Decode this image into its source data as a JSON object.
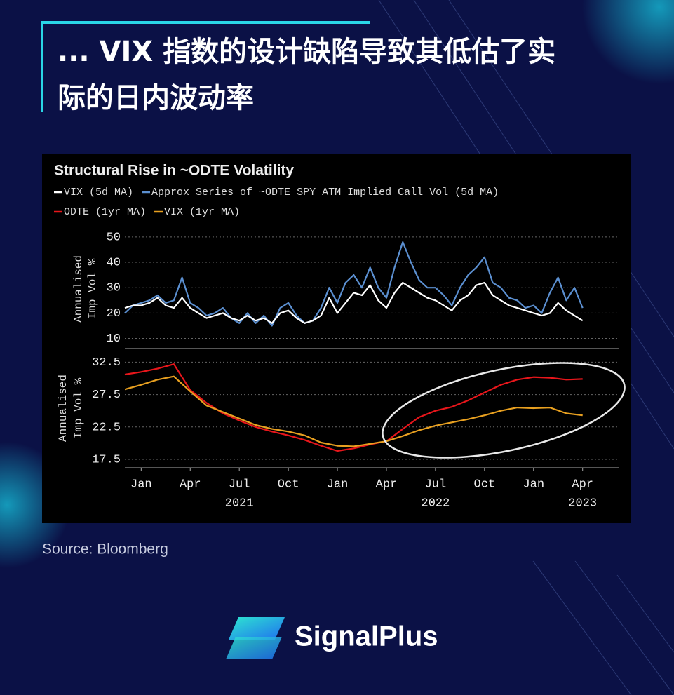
{
  "header": {
    "title_lines": [
      "... VIX 指数的设计缺陷导致其低估了实",
      "际的日内波动率"
    ]
  },
  "chart_data": [
    {
      "type": "line",
      "title": "Structural Rise in ~ODTE Volatility",
      "ylabel": [
        "Annualised",
        "Imp Vol %"
      ],
      "x": [
        -1,
        -0.5,
        0,
        0.5,
        1,
        1.5,
        2,
        2.5,
        3,
        3.5,
        4,
        4.5,
        5,
        5.5,
        6,
        6.5,
        7,
        7.5,
        8,
        8.5,
        9,
        9.5,
        10,
        10.5,
        11,
        11.5,
        12,
        12.5,
        13,
        13.5,
        14,
        14.5,
        15,
        15.5,
        16,
        16.5,
        17,
        17.5,
        18,
        18.5,
        19,
        19.5,
        20,
        20.5,
        21,
        21.5,
        22,
        22.5,
        23,
        23.5,
        24,
        24.5,
        25,
        25.5,
        26,
        26.5,
        27
      ],
      "xlim": [
        -1,
        29.2
      ],
      "ylim": [
        6,
        53
      ],
      "yticks": [
        10,
        20,
        30,
        40,
        50
      ],
      "grid": true,
      "series": [
        {
          "name": "Approx Series of ~ODTE SPY ATM Implied Call Vol (5d MA)",
          "color": "#5b8fd0",
          "values": [
            20,
            23,
            24,
            25,
            27,
            24,
            25,
            34,
            24,
            22,
            19,
            20,
            22,
            18,
            16,
            20,
            16,
            19,
            15,
            22,
            24,
            19,
            16,
            17,
            22,
            30,
            24,
            32,
            35,
            30,
            38,
            30,
            26,
            38,
            48,
            40,
            33,
            30,
            30,
            27,
            23,
            30,
            35,
            38,
            42,
            32,
            30,
            26,
            25,
            22,
            23,
            20,
            28,
            34,
            25,
            30,
            22
          ]
        },
        {
          "name": "VIX (5d MA)",
          "color": "#ffffff",
          "values": [
            22,
            23,
            23,
            24,
            26,
            23,
            22,
            26,
            22,
            20,
            18,
            19,
            20,
            18,
            17,
            19,
            17,
            18,
            16,
            20,
            21,
            18,
            16,
            17,
            19,
            26,
            20,
            24,
            28,
            27,
            31,
            25,
            22,
            28,
            32,
            30,
            28,
            26,
            25,
            23,
            21,
            25,
            27,
            31,
            32,
            27,
            25,
            23,
            22,
            21,
            20,
            19,
            20,
            24,
            21,
            19,
            17
          ]
        }
      ]
    },
    {
      "type": "line",
      "ylabel": [
        "Annualised",
        "Imp Vol %"
      ],
      "x": [
        -1,
        0,
        1,
        2,
        3,
        4,
        5,
        6,
        7,
        8,
        9,
        10,
        11,
        12,
        13,
        14,
        15,
        16,
        17,
        18,
        19,
        20,
        21,
        22,
        23,
        24,
        25,
        26,
        27
      ],
      "xlim": [
        -1,
        29.2
      ],
      "ylim": [
        16.2,
        34.6
      ],
      "yticks": [
        17.5,
        22.5,
        27.5,
        32.5
      ],
      "grid": true,
      "xticks": [
        {
          "value": 0,
          "label": "Jan"
        },
        {
          "value": 3,
          "label": "Apr"
        },
        {
          "value": 6,
          "label": "Jul"
        },
        {
          "value": 9,
          "label": "Oct"
        },
        {
          "value": 12,
          "label": "Jan"
        },
        {
          "value": 15,
          "label": "Apr"
        },
        {
          "value": 18,
          "label": "Jul"
        },
        {
          "value": 21,
          "label": "Oct"
        },
        {
          "value": 24,
          "label": "Jan"
        },
        {
          "value": 27,
          "label": "Apr"
        }
      ],
      "year_labels": [
        {
          "value": 6,
          "label": "2021"
        },
        {
          "value": 18,
          "label": "2022"
        },
        {
          "value": 27,
          "label": "2023"
        }
      ],
      "series": [
        {
          "name": "ODTE (1yr MA)",
          "color": "#e8161b",
          "values": [
            30.6,
            31,
            31.5,
            32.2,
            28.2,
            26.2,
            24.6,
            23.5,
            22.5,
            21.8,
            21.2,
            20.5,
            19.6,
            18.8,
            19.2,
            19.8,
            20.3,
            22.2,
            24,
            25,
            25.6,
            26.6,
            27.8,
            29,
            29.8,
            30.2,
            30.1,
            29.8,
            29.9
          ]
        },
        {
          "name": "VIX (1yr MA)",
          "color": "#e8a020",
          "values": [
            28.3,
            29,
            29.8,
            30.3,
            28,
            25.8,
            24.8,
            23.8,
            22.8,
            22.2,
            21.8,
            21.2,
            20.1,
            19.6,
            19.5,
            19.9,
            20.3,
            21.1,
            22,
            22.7,
            23.2,
            23.7,
            24.3,
            25,
            25.5,
            25.4,
            25.5,
            24.6,
            24.3
          ]
        }
      ]
    }
  ],
  "source": "Source: Bloomberg",
  "brand": "SignalPlus"
}
